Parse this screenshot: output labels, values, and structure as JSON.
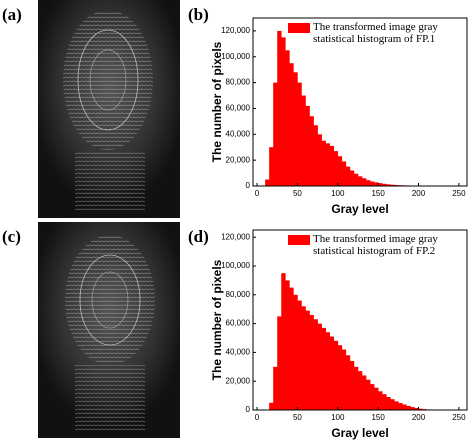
{
  "panel_labels": [
    "(a)",
    "(b)",
    "(c)",
    "(d)"
  ],
  "chart_data": [
    {
      "type": "histogram",
      "legend": "The transformed image gray statistical histogram of FP.1",
      "color": "#ff0000",
      "xlabel": "Gray level",
      "ylabel": "The number of pixels",
      "bins": [
        0,
        5,
        10,
        15,
        20,
        25,
        30,
        35,
        40,
        45,
        50,
        55,
        60,
        65,
        70,
        75,
        80,
        85,
        90,
        95,
        100,
        105,
        110,
        115,
        120,
        125,
        130,
        135,
        140,
        145,
        150,
        155,
        160,
        165,
        170,
        175,
        180,
        185,
        190,
        195,
        200,
        205,
        210,
        215,
        220,
        225,
        230,
        235,
        240,
        245,
        250,
        255
      ],
      "values": [
        0,
        0,
        5000,
        30000,
        80000,
        120000,
        115000,
        105000,
        95000,
        88000,
        80000,
        70000,
        62000,
        54000,
        47000,
        40000,
        35000,
        33000,
        31000,
        27000,
        23000,
        19000,
        15000,
        12000,
        9500,
        7500,
        6000,
        4500,
        3500,
        2800,
        2200,
        1700,
        1300,
        1000,
        800,
        600,
        500,
        400,
        300,
        200,
        150,
        100,
        80,
        50,
        30,
        20,
        10,
        0,
        0,
        0,
        0
      ],
      "xlim": [
        -5,
        260
      ],
      "xticks": [
        0,
        50,
        100,
        150,
        200,
        250
      ],
      "ylim": [
        0,
        130000
      ],
      "yticks": [
        0,
        {
          "value": 20000,
          "label": "20,000"
        },
        {
          "value": 40000,
          "label": "40,000"
        },
        {
          "value": 60000,
          "label": "60,000"
        },
        {
          "value": 80000,
          "label": "80,000"
        },
        {
          "value": 100000,
          "label": "100,000"
        },
        {
          "value": 120000,
          "label": "120,000"
        }
      ]
    },
    {
      "type": "histogram",
      "legend": "The transformed image gray statistical histogram of FP.2",
      "color": "#ff0000",
      "xlabel": "Gray level",
      "ylabel": "The number of pixels",
      "bins": [
        0,
        5,
        10,
        15,
        20,
        25,
        30,
        35,
        40,
        45,
        50,
        55,
        60,
        65,
        70,
        75,
        80,
        85,
        90,
        95,
        100,
        105,
        110,
        115,
        120,
        125,
        130,
        135,
        140,
        145,
        150,
        155,
        160,
        165,
        170,
        175,
        180,
        185,
        190,
        195,
        200,
        205,
        210,
        215,
        220,
        225,
        230,
        235,
        240,
        245,
        250,
        255
      ],
      "values": [
        0,
        0,
        0,
        5000,
        30000,
        65000,
        95000,
        90000,
        85000,
        80000,
        76000,
        72000,
        69000,
        66000,
        63000,
        60000,
        57000,
        54000,
        51000,
        48000,
        45000,
        42000,
        38000,
        34000,
        30000,
        27000,
        24000,
        21000,
        18000,
        15500,
        13000,
        11000,
        9000,
        7500,
        6000,
        4800,
        3800,
        2800,
        2000,
        1400,
        900,
        600,
        350,
        200,
        100,
        50,
        20,
        0,
        0,
        0,
        0
      ],
      "xlim": [
        -5,
        260
      ],
      "xticks": [
        0,
        50,
        100,
        150,
        200,
        250
      ],
      "ylim": [
        0,
        125000
      ],
      "yticks": [
        0,
        {
          "value": 20000,
          "label": "20,000"
        },
        {
          "value": 40000,
          "label": "40,000"
        },
        {
          "value": 60000,
          "label": "60,000"
        },
        {
          "value": 80000,
          "label": "80,000"
        },
        {
          "value": 100000,
          "label": "100,000"
        },
        {
          "value": 120000,
          "label": "120,000"
        }
      ]
    }
  ]
}
